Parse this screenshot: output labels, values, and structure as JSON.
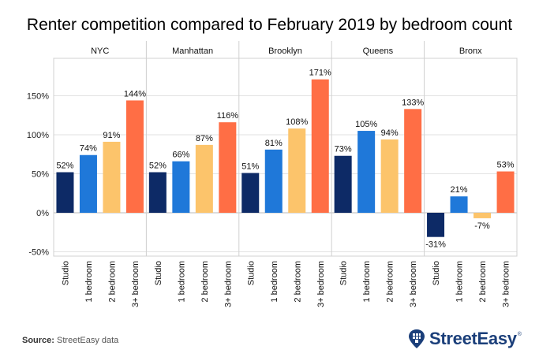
{
  "chart_data": {
    "type": "bar",
    "title": "Renter competition compared to February 2019 by bedroom count",
    "panels": [
      "NYC",
      "Manhattan",
      "Brooklyn",
      "Queens",
      "Bronx"
    ],
    "categories": [
      "Studio",
      "1 bedroom",
      "2 bedroom",
      "3+ bedroom"
    ],
    "values": [
      [
        52,
        74,
        91,
        144
      ],
      [
        52,
        66,
        87,
        116
      ],
      [
        51,
        81,
        108,
        171
      ],
      [
        73,
        105,
        94,
        133
      ],
      [
        -31,
        21,
        -7,
        53
      ]
    ],
    "value_labels": [
      [
        "52%",
        "74%",
        "91%",
        "144%"
      ],
      [
        "52%",
        "66%",
        "87%",
        "116%"
      ],
      [
        "51%",
        "81%",
        "108%",
        "171%"
      ],
      [
        "73%",
        "105%",
        "94%",
        "133%"
      ],
      [
        "-31%",
        "21%",
        "-7%",
        "53%"
      ]
    ],
    "colors": [
      "#0d2a66",
      "#1f78d9",
      "#fcc46b",
      "#ff6e45"
    ],
    "ylim": [
      -55,
      190
    ],
    "yticks": [
      -50,
      0,
      50,
      100,
      150
    ],
    "ytick_labels": [
      "-50%",
      "0%",
      "50%",
      "100%",
      "150%"
    ],
    "xlabel": "",
    "ylabel": ""
  },
  "footer": {
    "source_label": "Source:",
    "source_text": "StreetEasy data",
    "brand": "StreetEasy",
    "brand_mark": "®"
  }
}
